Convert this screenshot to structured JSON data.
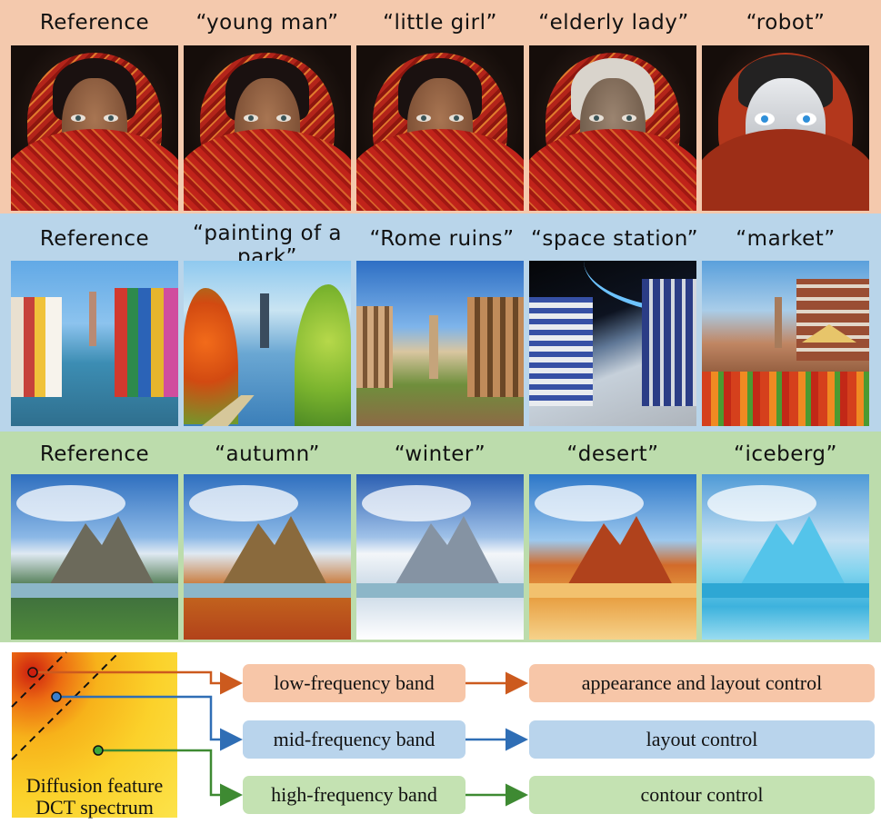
{
  "rows": [
    {
      "labels": [
        "Reference",
        "“young man”",
        "“little girl”",
        "“elderly lady”",
        "“robot”"
      ]
    },
    {
      "labels": [
        "Reference",
        "“painting of a park”",
        "“Rome ruins”",
        "“space station”",
        "“market”"
      ]
    },
    {
      "labels": [
        "Reference",
        "“autumn”",
        "“winter”",
        "“desert”",
        "“iceberg”"
      ]
    }
  ],
  "diagram": {
    "caption_line1": "Diffusion feature",
    "caption_line2": "DCT spectrum",
    "bands": [
      {
        "name": "low-frequency band",
        "control": "appearance and layout control",
        "color": "#cc5a1e"
      },
      {
        "name": "mid-frequency band",
        "control": "layout control",
        "color": "#2f6eb5"
      },
      {
        "name": "high-frequency band",
        "control": "contour control",
        "color": "#3e8a32"
      }
    ]
  },
  "colors": {
    "row1_bg": "#f4c9ad",
    "row2_bg": "#b9d5ea",
    "row3_bg": "#bcdcac"
  }
}
